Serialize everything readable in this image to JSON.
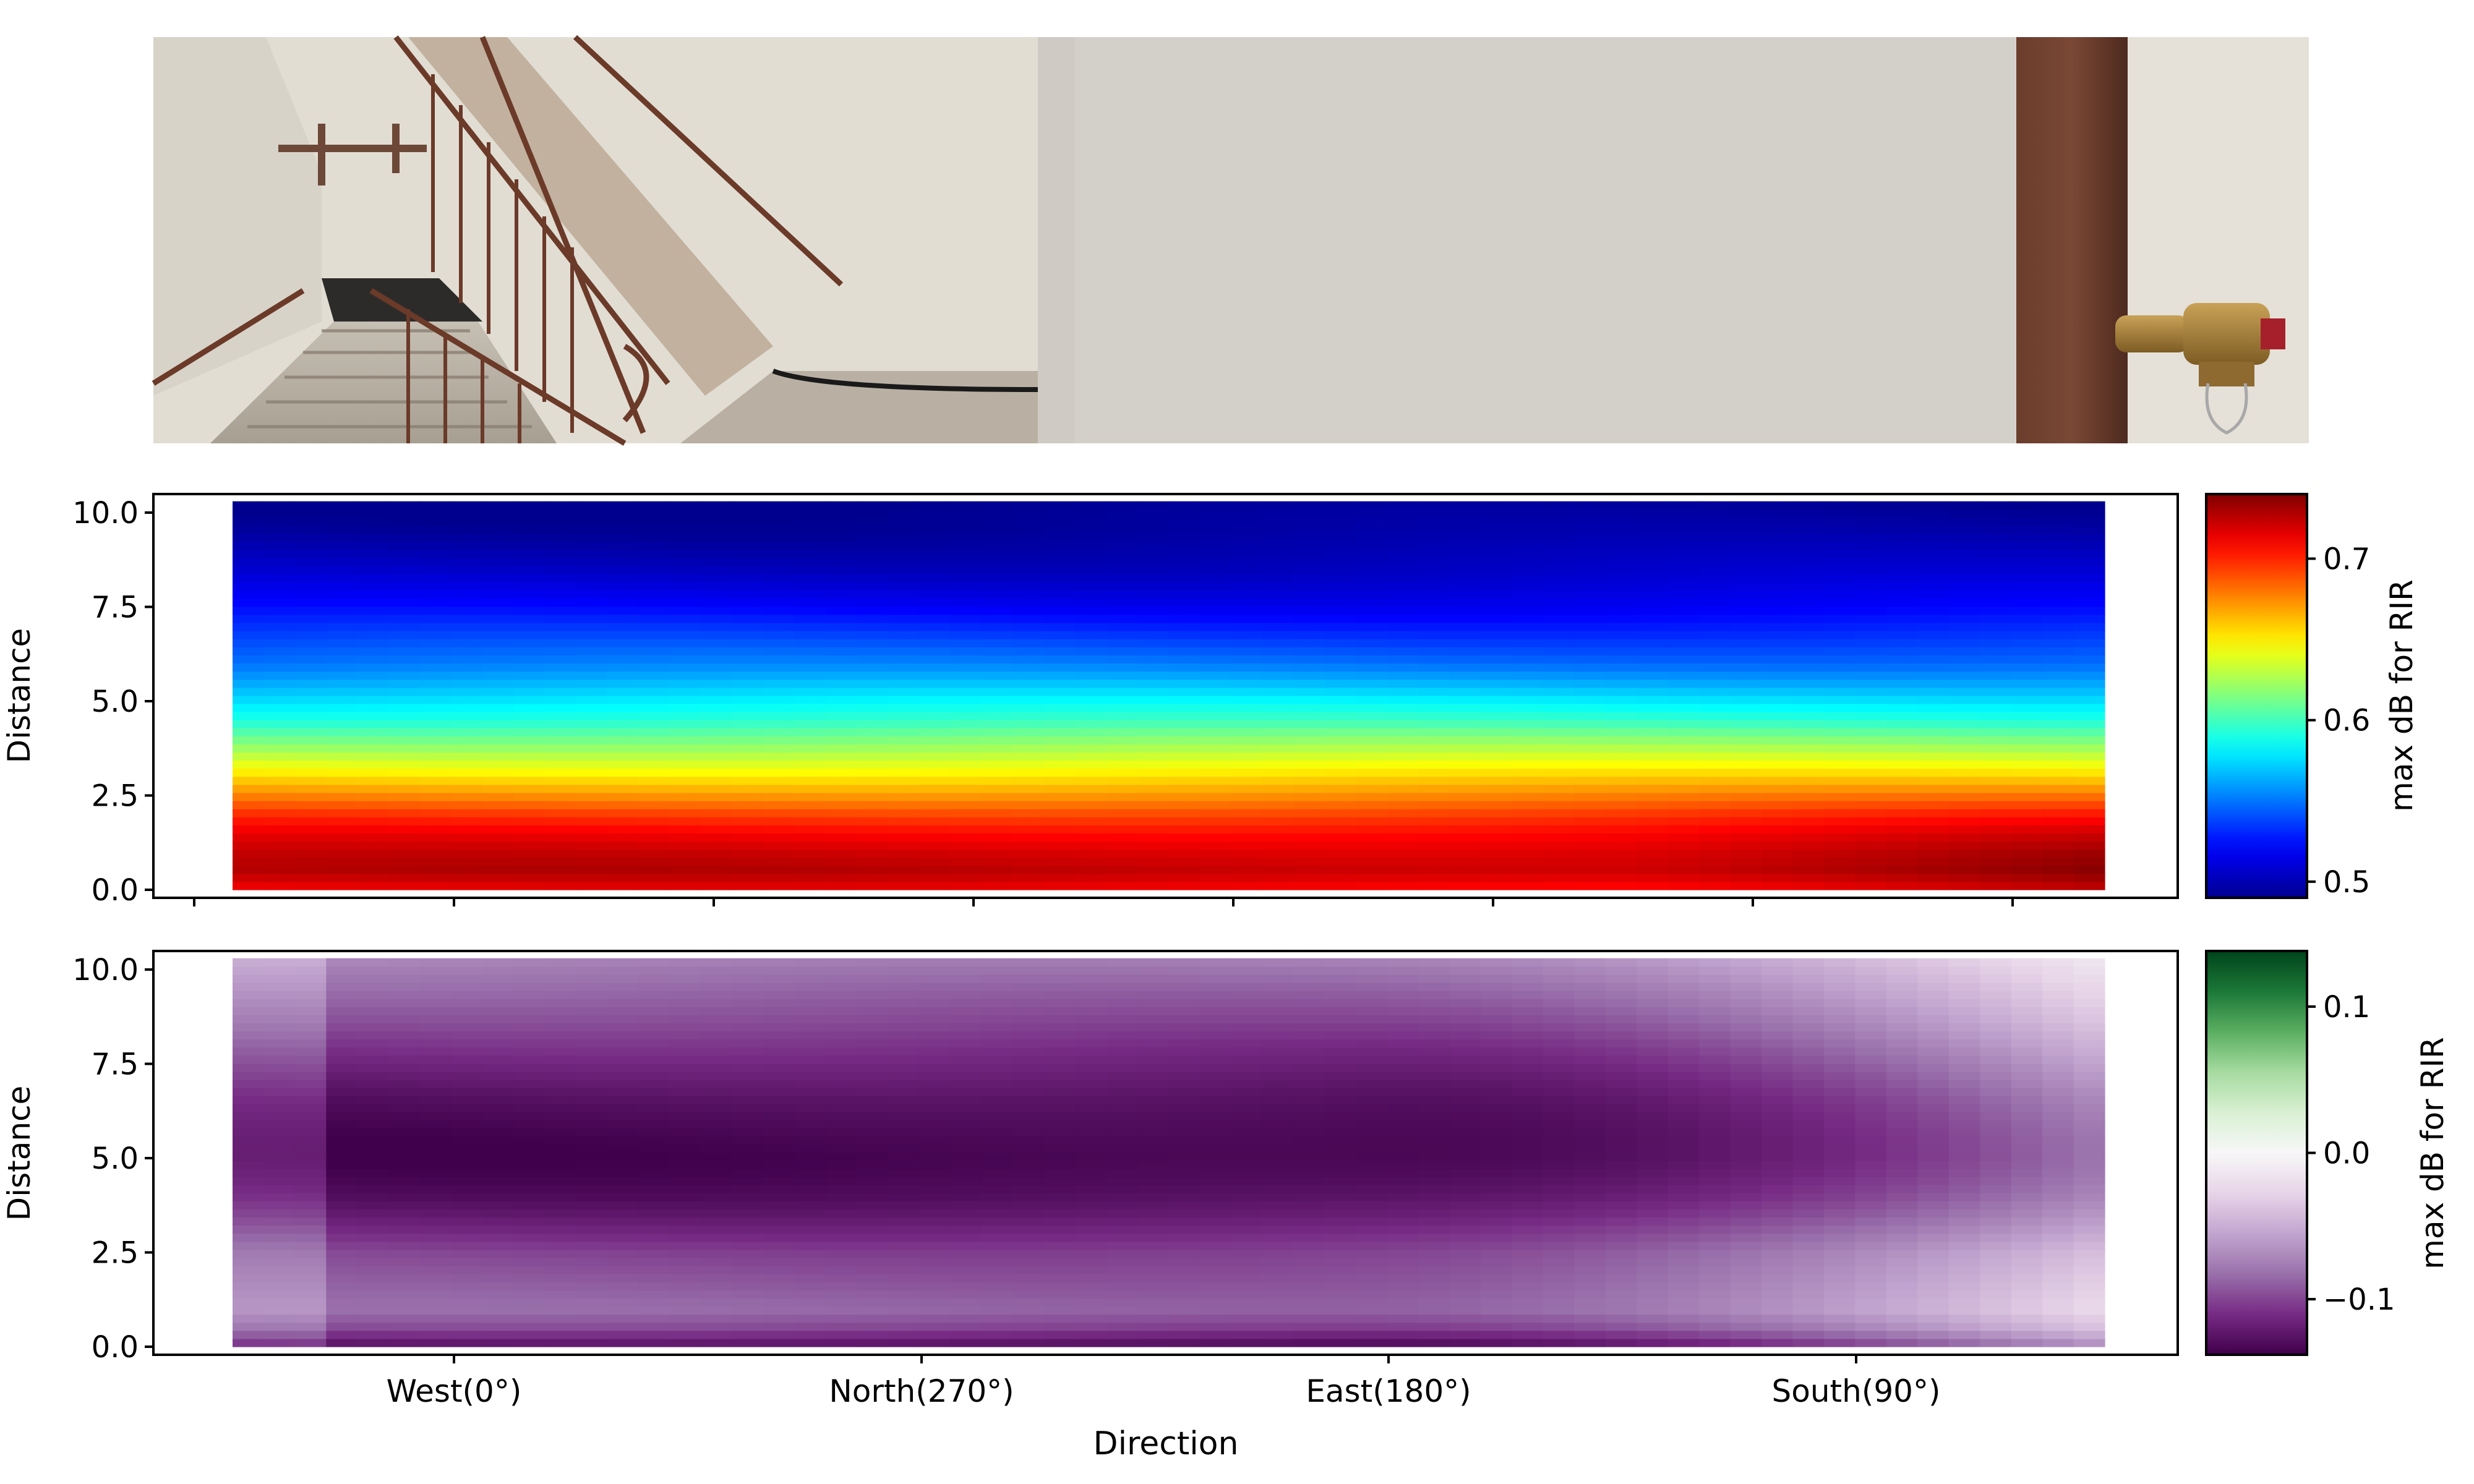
{
  "panorama": {
    "description_icon": "panorama-photo"
  },
  "chart_data": [
    {
      "type": "heatmap",
      "title": "",
      "xlabel": "",
      "ylabel": "Distance",
      "ylim": [
        0.0,
        10.3
      ],
      "yticks": [
        0.0,
        2.5,
        5.0,
        7.5,
        10.0
      ],
      "ytick_labels": [
        "0.0",
        "2.5",
        "5.0",
        "7.5",
        "10.0"
      ],
      "xtick_labels": [],
      "colorbar": {
        "label": "max dB for RIR",
        "colormap": "jet",
        "range": [
          0.49,
          0.74
        ],
        "ticks": [
          0.5,
          0.6,
          0.7
        ],
        "tick_labels": [
          "0.5",
          "0.6",
          "0.7"
        ]
      },
      "profile_by_distance": {
        "distance": [
          0.0,
          0.5,
          1.0,
          1.5,
          2.0,
          2.5,
          3.0,
          3.5,
          4.0,
          4.5,
          5.0,
          5.5,
          6.0,
          6.5,
          7.0,
          7.5,
          8.0,
          8.5,
          9.0,
          9.5,
          10.0,
          10.3
        ],
        "value": [
          0.71,
          0.725,
          0.72,
          0.71,
          0.695,
          0.675,
          0.655,
          0.635,
          0.615,
          0.595,
          0.58,
          0.565,
          0.55,
          0.54,
          0.53,
          0.52,
          0.512,
          0.505,
          0.5,
          0.495,
          0.492,
          0.49
        ]
      },
      "note": "Values are nearly uniform across directions; slightly higher near the South(90°) end for low distances."
    },
    {
      "type": "heatmap",
      "title": "",
      "xlabel": "Direction",
      "ylabel": "Distance",
      "ylim": [
        0.0,
        10.3
      ],
      "yticks": [
        0.0,
        2.5,
        5.0,
        7.5,
        10.0
      ],
      "ytick_labels": [
        "0.0",
        "2.5",
        "5.0",
        "7.5",
        "10.0"
      ],
      "xtick_labels": [
        "West(0°)",
        "North(270°)",
        "East(180°)",
        "South(90°)"
      ],
      "colorbar": {
        "label": "max dB for RIR",
        "colormap": "PRGn",
        "range": [
          -0.138,
          0.138
        ],
        "ticks": [
          0.1,
          0.0,
          -0.1
        ],
        "tick_labels": [
          "0.1",
          "0.0",
          "−0.1"
        ]
      },
      "profile_by_distance": {
        "distance": [
          0.0,
          0.5,
          1.0,
          1.5,
          2.0,
          2.5,
          3.0,
          3.5,
          4.0,
          4.5,
          5.0,
          5.5,
          6.0,
          6.5,
          7.0,
          7.5,
          8.0,
          8.5,
          9.0,
          9.5,
          10.0,
          10.3
        ],
        "value": [
          -0.13,
          -0.1,
          -0.085,
          -0.09,
          -0.095,
          -0.1,
          -0.11,
          -0.12,
          -0.128,
          -0.133,
          -0.136,
          -0.135,
          -0.132,
          -0.128,
          -0.122,
          -0.115,
          -0.108,
          -0.1,
          -0.093,
          -0.086,
          -0.078,
          -0.072
        ]
      },
      "note": "Values become lighter (less negative) toward the South(90°) end, especially near distance 0–4 and 9–10."
    }
  ]
}
